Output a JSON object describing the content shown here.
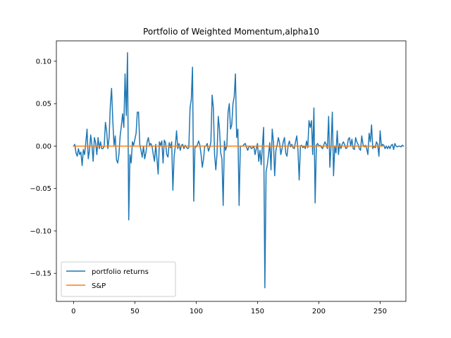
{
  "chart_data": {
    "type": "line",
    "title": "Portfolio of Weighted Momentum,alpha10",
    "xlabel": "",
    "ylabel": "",
    "xlim": [
      -14,
      271
    ],
    "ylim": [
      -0.183,
      0.124
    ],
    "xticks": [
      0,
      50,
      100,
      150,
      200,
      250
    ],
    "xtick_labels": [
      "0",
      "50",
      "100",
      "150",
      "200",
      "250"
    ],
    "yticks": [
      -0.15,
      -0.1,
      -0.05,
      0.0,
      0.05,
      0.1
    ],
    "ytick_labels": [
      "−0.15",
      "−0.10",
      "−0.05",
      "0.00",
      "0.05",
      "0.10"
    ],
    "grid": false,
    "legend_position": "lower-left",
    "series": [
      {
        "name": "portfolio returns",
        "color": "#1f77b4",
        "points": [
          [
            0,
            0.0
          ],
          [
            1,
            0.002
          ],
          [
            2,
            -0.008
          ],
          [
            3,
            -0.012
          ],
          [
            4,
            -0.003
          ],
          [
            5,
            -0.01
          ],
          [
            6,
            -0.007
          ],
          [
            7,
            -0.023
          ],
          [
            8,
            -0.004
          ],
          [
            9,
            -0.01
          ],
          [
            10,
            0.004
          ],
          [
            11,
            0.02
          ],
          [
            12,
            -0.015
          ],
          [
            13,
            -0.005
          ],
          [
            14,
            0.013
          ],
          [
            15,
            0.001
          ],
          [
            16,
            -0.018
          ],
          [
            17,
            0.01
          ],
          [
            18,
            0.004
          ],
          [
            19,
            -0.01
          ],
          [
            20,
            0.01
          ],
          [
            21,
            -0.003
          ],
          [
            22,
            0.005
          ],
          [
            23,
            -0.003
          ],
          [
            24,
            -0.003
          ],
          [
            25,
            0.0
          ],
          [
            26,
            0.028
          ],
          [
            27,
            0.018
          ],
          [
            28,
            -0.003
          ],
          [
            29,
            0.01
          ],
          [
            30,
            0.048
          ],
          [
            31,
            0.068
          ],
          [
            32,
            0.03
          ],
          [
            33,
            0.001
          ],
          [
            34,
            0.012
          ],
          [
            35,
            -0.016
          ],
          [
            36,
            -0.02
          ],
          [
            37,
            -0.01
          ],
          [
            38,
            0.012
          ],
          [
            39,
            0.024
          ],
          [
            40,
            0.038
          ],
          [
            41,
            0.022
          ],
          [
            42,
            0.085
          ],
          [
            43,
            0.036
          ],
          [
            44,
            0.11
          ],
          [
            45,
            -0.087
          ],
          [
            46,
            -0.01
          ],
          [
            47,
            -0.02
          ],
          [
            48,
            0.005
          ],
          [
            49,
            0.001
          ],
          [
            50,
            0.008
          ],
          [
            51,
            0.015
          ],
          [
            52,
            0.04
          ],
          [
            53,
            0.04
          ],
          [
            54,
            0.002
          ],
          [
            55,
            -0.005
          ],
          [
            56,
            -0.013
          ],
          [
            57,
            0.0
          ],
          [
            58,
            -0.015
          ],
          [
            59,
            -0.008
          ],
          [
            60,
            0.005
          ],
          [
            61,
            0.01
          ],
          [
            62,
            0.001
          ],
          [
            63,
            0.003
          ],
          [
            64,
            0.0
          ],
          [
            65,
            -0.01
          ],
          [
            66,
            -0.018
          ],
          [
            67,
            0.002
          ],
          [
            68,
            -0.015
          ],
          [
            69,
            -0.033
          ],
          [
            70,
            0.005
          ],
          [
            71,
            0.001
          ],
          [
            72,
            0.006
          ],
          [
            73,
            -0.02
          ],
          [
            74,
            0.007
          ],
          [
            75,
            0.004
          ],
          [
            76,
            -0.01
          ],
          [
            77,
            -0.013
          ],
          [
            78,
            0.004
          ],
          [
            79,
            -0.002
          ],
          [
            80,
            0.005
          ],
          [
            81,
            -0.052
          ],
          [
            82,
            -0.012
          ],
          [
            83,
            0.0
          ],
          [
            84,
            0.018
          ],
          [
            85,
            -0.003
          ],
          [
            86,
            0.003
          ],
          [
            87,
            -0.005
          ],
          [
            88,
            0.001
          ],
          [
            89,
            0.002
          ],
          [
            90,
            -0.003
          ],
          [
            91,
            0.001
          ],
          [
            92,
            -0.001
          ],
          [
            93,
            -0.003
          ],
          [
            94,
            -0.002
          ],
          [
            95,
            0.045
          ],
          [
            96,
            0.055
          ],
          [
            97,
            0.093
          ],
          [
            98,
            -0.065
          ],
          [
            99,
            0.0
          ],
          [
            100,
            -0.001
          ],
          [
            101,
            0.002
          ],
          [
            102,
            0.006
          ],
          [
            103,
            0.001
          ],
          [
            104,
            -0.01
          ],
          [
            105,
            -0.025
          ],
          [
            106,
            -0.015
          ],
          [
            107,
            0.0
          ],
          [
            108,
            0.0
          ],
          [
            109,
            0.003
          ],
          [
            110,
            -0.006
          ],
          [
            111,
            -0.002
          ],
          [
            112,
            0.005
          ],
          [
            113,
            0.06
          ],
          [
            114,
            0.045
          ],
          [
            115,
            -0.01
          ],
          [
            116,
            -0.028
          ],
          [
            117,
            -0.009
          ],
          [
            118,
            0.035
          ],
          [
            119,
            0.02
          ],
          [
            120,
            -0.008
          ],
          [
            121,
            -0.015
          ],
          [
            122,
            -0.07
          ],
          [
            123,
            0.006
          ],
          [
            124,
            -0.005
          ],
          [
            125,
            0.0
          ],
          [
            126,
            0.04
          ],
          [
            127,
            0.05
          ],
          [
            128,
            0.02
          ],
          [
            129,
            0.025
          ],
          [
            130,
            0.05
          ],
          [
            131,
            0.058
          ],
          [
            132,
            0.085
          ],
          [
            133,
            0.01
          ],
          [
            134,
            0.02
          ],
          [
            135,
            -0.07
          ],
          [
            136,
            0.0
          ],
          [
            137,
            0.0
          ],
          [
            138,
            0.0
          ],
          [
            139,
            0.002
          ],
          [
            140,
            0.003
          ],
          [
            141,
            -0.001
          ],
          [
            142,
            -0.005
          ],
          [
            143,
            -0.001
          ],
          [
            144,
            0.0
          ],
          [
            145,
            -0.003
          ],
          [
            146,
            -0.002
          ],
          [
            147,
            0.0
          ],
          [
            148,
            -0.01
          ],
          [
            149,
            -0.003
          ],
          [
            150,
            0.003
          ],
          [
            151,
            -0.018
          ],
          [
            152,
            -0.005
          ],
          [
            153,
            -0.022
          ],
          [
            154,
            0.0
          ],
          [
            155,
            0.022
          ],
          [
            156,
            -0.167
          ],
          [
            157,
            -0.03
          ],
          [
            158,
            -0.022
          ],
          [
            159,
            -0.01
          ],
          [
            160,
            0.004
          ],
          [
            161,
            -0.028
          ],
          [
            162,
            0.02
          ],
          [
            163,
            0.005
          ],
          [
            164,
            -0.035
          ],
          [
            165,
            -0.005
          ],
          [
            166,
            0.001
          ],
          [
            167,
            0.01
          ],
          [
            168,
            0.004
          ],
          [
            169,
            -0.01
          ],
          [
            170,
            -0.003
          ],
          [
            171,
            0.005
          ],
          [
            172,
            0.01
          ],
          [
            173,
            -0.008
          ],
          [
            174,
            -0.012
          ],
          [
            175,
            0.001
          ],
          [
            176,
            0.006
          ],
          [
            177,
            -0.001
          ],
          [
            178,
            0.002
          ],
          [
            179,
            -0.002
          ],
          [
            180,
            -0.003
          ],
          [
            181,
            0.005
          ],
          [
            182,
            0.012
          ],
          [
            183,
            -0.005
          ],
          [
            184,
            -0.04
          ],
          [
            185,
            0.0
          ],
          [
            186,
            0.001
          ],
          [
            187,
            -0.002
          ],
          [
            188,
            0.0
          ],
          [
            189,
            -0.003
          ],
          [
            190,
            0.006
          ],
          [
            191,
            -0.002
          ],
          [
            192,
            0.03
          ],
          [
            193,
            0.022
          ],
          [
            194,
            0.03
          ],
          [
            195,
            -0.01
          ],
          [
            196,
            0.045
          ],
          [
            197,
            -0.067
          ],
          [
            198,
            0.001
          ],
          [
            199,
            0.003
          ],
          [
            200,
            0.0
          ],
          [
            201,
            0.001
          ],
          [
            202,
            -0.001
          ],
          [
            203,
            -0.003
          ],
          [
            204,
            0.001
          ],
          [
            205,
            0.005
          ],
          [
            206,
            0.002
          ],
          [
            207,
            -0.003
          ],
          [
            208,
            0.035
          ],
          [
            209,
            -0.025
          ],
          [
            210,
            0.001
          ],
          [
            211,
            0.04
          ],
          [
            212,
            -0.035
          ],
          [
            213,
            0.0
          ],
          [
            214,
            -0.008
          ],
          [
            215,
            0.018
          ],
          [
            216,
            -0.01
          ],
          [
            217,
            0.003
          ],
          [
            218,
            -0.003
          ],
          [
            219,
            0.002
          ],
          [
            220,
            0.005
          ],
          [
            221,
            0.002
          ],
          [
            222,
            -0.003
          ],
          [
            223,
            -0.002
          ],
          [
            224,
            0.008
          ],
          [
            225,
            0.01
          ],
          [
            226,
            0.0
          ],
          [
            227,
            0.008
          ],
          [
            228,
            -0.003
          ],
          [
            229,
            -0.004
          ],
          [
            230,
            0.01
          ],
          [
            231,
            0.005
          ],
          [
            232,
            0.002
          ],
          [
            233,
            -0.003
          ],
          [
            234,
            -0.005
          ],
          [
            235,
            0.012
          ],
          [
            236,
            0.002
          ],
          [
            237,
            -0.001
          ],
          [
            238,
            0.001
          ],
          [
            239,
            -0.003
          ],
          [
            240,
            -0.01
          ],
          [
            241,
            0.015
          ],
          [
            242,
            0.005
          ],
          [
            243,
            0.025
          ],
          [
            244,
            -0.003
          ],
          [
            245,
            0.0
          ],
          [
            246,
            -0.002
          ],
          [
            247,
            0.005
          ],
          [
            248,
            0.002
          ],
          [
            249,
            -0.012
          ],
          [
            250,
            0.018
          ],
          [
            251,
            0.0
          ],
          [
            252,
            0.002
          ],
          [
            253,
            0.001
          ],
          [
            254,
            -0.003
          ],
          [
            255,
            0.0
          ],
          [
            256,
            -0.003
          ],
          [
            257,
            0.0
          ],
          [
            258,
            -0.003
          ],
          [
            259,
            0.001
          ],
          [
            260,
            0.002
          ],
          [
            261,
            -0.004
          ],
          [
            262,
            0.003
          ],
          [
            263,
            0.0
          ],
          [
            264,
            -0.001
          ],
          [
            265,
            0.0
          ],
          [
            266,
            0.0
          ],
          [
            267,
            -0.001
          ],
          [
            268,
            0.001
          ],
          [
            269,
            0.0
          ]
        ]
      },
      {
        "name": "S&P",
        "color": "#ff7f0e",
        "points": [
          [
            0,
            0.0
          ],
          [
            252,
            0.0
          ]
        ]
      }
    ]
  }
}
